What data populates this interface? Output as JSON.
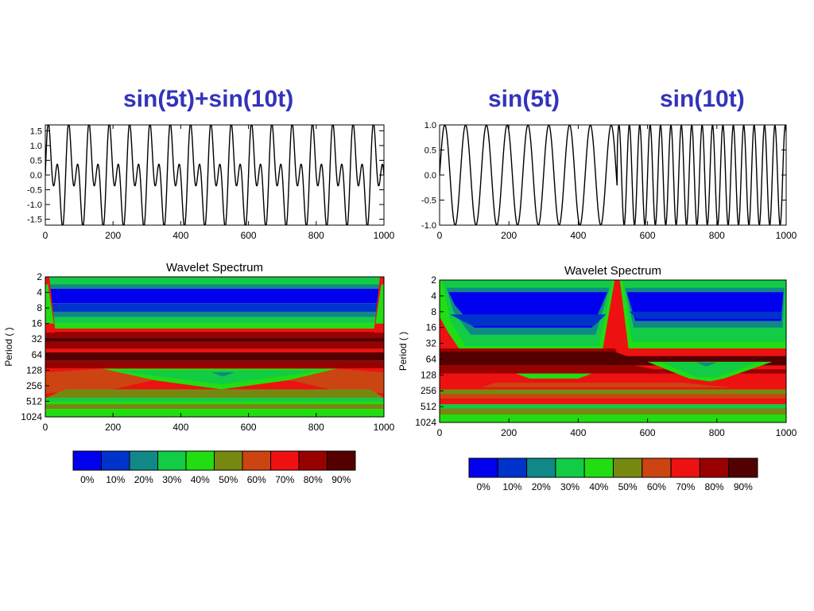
{
  "titles": {
    "left": "sin(5t)+sin(10t)",
    "right_a": "sin(5t)",
    "right_b": "sin(10t)"
  },
  "chart_data": [
    {
      "type": "line",
      "name": "left-timeseries",
      "x_range": [
        0,
        1000
      ],
      "ylim": [
        -1.7,
        1.7
      ],
      "x_ticks": [
        "0",
        "200",
        "400",
        "600",
        "800",
        "1000"
      ],
      "y_ticks": [
        "1.5",
        "1.0",
        "0.5",
        "0.0",
        "-0.5",
        "-1.0",
        "-1.5"
      ],
      "series": [
        {
          "components": [
            {
              "period": 60,
              "amplitude": 1.0
            },
            {
              "period": 30,
              "amplitude": 1.0
            }
          ]
        }
      ]
    },
    {
      "type": "line",
      "name": "right-timeseries",
      "x_range": [
        0,
        1000
      ],
      "ylim": [
        -1.0,
        1.0
      ],
      "x_ticks": [
        "0",
        "200",
        "400",
        "600",
        "800",
        "1000"
      ],
      "y_ticks": [
        "1.0",
        "0.5",
        "0.0",
        "-0.5",
        "-1.0"
      ],
      "series": [
        {
          "segments": [
            {
              "x_from": 0,
              "x_to": 512,
              "period": 60
            },
            {
              "x_from": 512,
              "x_to": 1000,
              "period": 30
            }
          ]
        }
      ]
    },
    {
      "type": "heatmap",
      "name": "left-wavelet-spectrum",
      "title": "Wavelet Spectrum",
      "ylabel": "Period ( )",
      "x_range": [
        0,
        1000
      ],
      "y_scale": "log2",
      "y_range": [
        2,
        1024
      ],
      "x_ticks": [
        "0",
        "200",
        "400",
        "600",
        "800",
        "1000"
      ],
      "y_ticks": [
        "2",
        "4",
        "8",
        "16",
        "32",
        "64",
        "128",
        "256",
        "512",
        "1024"
      ],
      "signal_periods": [
        30,
        60
      ]
    },
    {
      "type": "heatmap",
      "name": "right-wavelet-spectrum",
      "title": "Wavelet Spectrum",
      "ylabel": "Period ( )",
      "x_range": [
        0,
        1000
      ],
      "y_scale": "log2",
      "y_range": [
        2,
        1024
      ],
      "x_ticks": [
        "0",
        "200",
        "400",
        "600",
        "800",
        "1000"
      ],
      "y_ticks": [
        "2",
        "4",
        "8",
        "16",
        "32",
        "64",
        "128",
        "256",
        "512",
        "1024"
      ],
      "signal_segments": [
        {
          "x_from": 0,
          "x_to": 512,
          "period": 60
        },
        {
          "x_from": 512,
          "x_to": 1000,
          "period": 30
        }
      ]
    }
  ],
  "colorbar": {
    "levels": [
      "0%",
      "10%",
      "20%",
      "30%",
      "40%",
      "50%",
      "60%",
      "70%",
      "80%",
      "90%"
    ],
    "colors": [
      "#0000ee",
      "#0033cc",
      "#118888",
      "#11cc44",
      "#22dd11",
      "#778811",
      "#cc4411",
      "#ee1111",
      "#990000",
      "#550000"
    ]
  }
}
